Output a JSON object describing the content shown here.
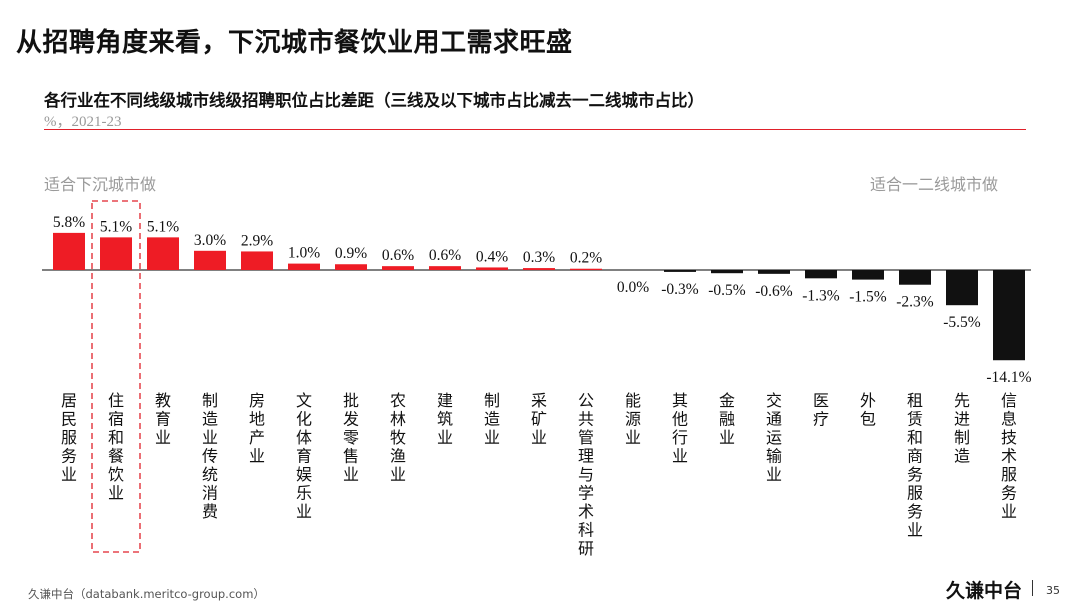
{
  "header": {
    "title": "从招聘角度来看，下沉城市餐饮业用工需求旺盛"
  },
  "chart_header": {
    "title": "各行业在不同线级城市线级招聘职位占比差距（三线及以下城市占比减去一二线城市占比）",
    "subtitle": "%，2021-23"
  },
  "annotations": {
    "left": "适合下沉城市做",
    "right": "适合一二线城市做"
  },
  "colors": {
    "positive": "#ee1c25",
    "negative": "#111111",
    "accent_rule": "#e0202a",
    "highlight_box": "#e0202a"
  },
  "chart_data": {
    "type": "bar",
    "categories": [
      "居民服务业",
      "住宿和餐饮业",
      "教育业",
      "制造业传统消费",
      "房地产业",
      "文化体育娱乐业",
      "批发零售业",
      "农林牧渔业",
      "建筑业",
      "制造业",
      "采矿业",
      "公共管理与学术科研",
      "能源业",
      "其他行业",
      "金融业",
      "交通运输业",
      "医疗",
      "外包",
      "租赁和商务服务业",
      "先进制造",
      "信息技术服务业"
    ],
    "values": [
      5.8,
      5.1,
      5.1,
      3.0,
      2.9,
      1.0,
      0.9,
      0.6,
      0.6,
      0.4,
      0.3,
      0.2,
      0.0,
      -0.3,
      -0.5,
      -0.6,
      -1.3,
      -1.5,
      -2.3,
      -5.5,
      -14.1
    ],
    "labels": [
      "5.8%",
      "5.1%",
      "5.1%",
      "3.0%",
      "2.9%",
      "1.0%",
      "0.9%",
      "0.6%",
      "0.6%",
      "0.4%",
      "0.3%",
      "0.2%",
      "0.0%",
      "-0.3%",
      "-0.5%",
      "-0.6%",
      "-1.3%",
      "-1.5%",
      "-2.3%",
      "-5.5%",
      "-14.1%"
    ],
    "highlighted_index": 1,
    "xlabel": "",
    "ylabel": "",
    "grid": false,
    "legend": "none"
  },
  "footer": {
    "source": "久谦中台（databank.meritco-group.com）",
    "brand": "久谦中台",
    "page": "35"
  }
}
